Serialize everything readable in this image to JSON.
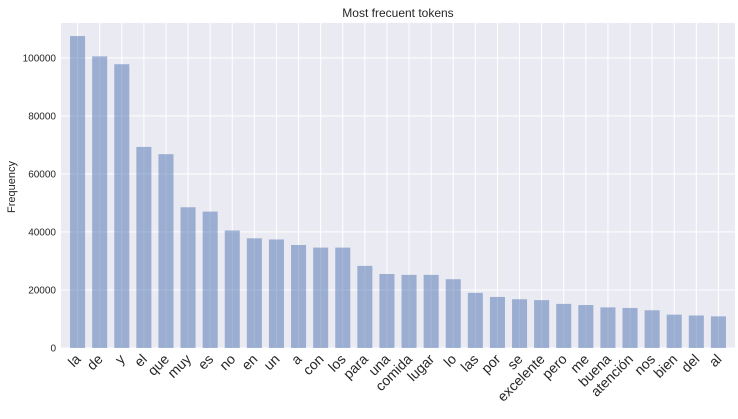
{
  "chart_data": {
    "type": "bar",
    "title": "Most frecuent tokens",
    "xlabel": "",
    "ylabel": "Frequency",
    "ylim": [
      0,
      112000
    ],
    "yticks": [
      0,
      20000,
      40000,
      60000,
      80000,
      100000
    ],
    "grid": true,
    "categories": [
      "la",
      "de",
      "y",
      "el",
      "que",
      "muy",
      "es",
      "no",
      "en",
      "un",
      "a",
      "con",
      "los",
      "para",
      "una",
      "comida",
      "lugar",
      "lo",
      "las",
      "por",
      "se",
      "excelente",
      "pero",
      "me",
      "buena",
      "atención",
      "nos",
      "bien",
      "del",
      "al"
    ],
    "values": [
      107500,
      100500,
      97800,
      69300,
      66800,
      48500,
      47000,
      40500,
      37800,
      37400,
      35500,
      34600,
      34600,
      28300,
      25500,
      25200,
      25200,
      23700,
      19000,
      17600,
      16800,
      16500,
      15200,
      14800,
      14000,
      13800,
      13000,
      11500,
      11200,
      10900
    ],
    "colors": {
      "bar": "#4c72b0",
      "background": "#eaeaf2",
      "grid": "#ffffff"
    }
  }
}
